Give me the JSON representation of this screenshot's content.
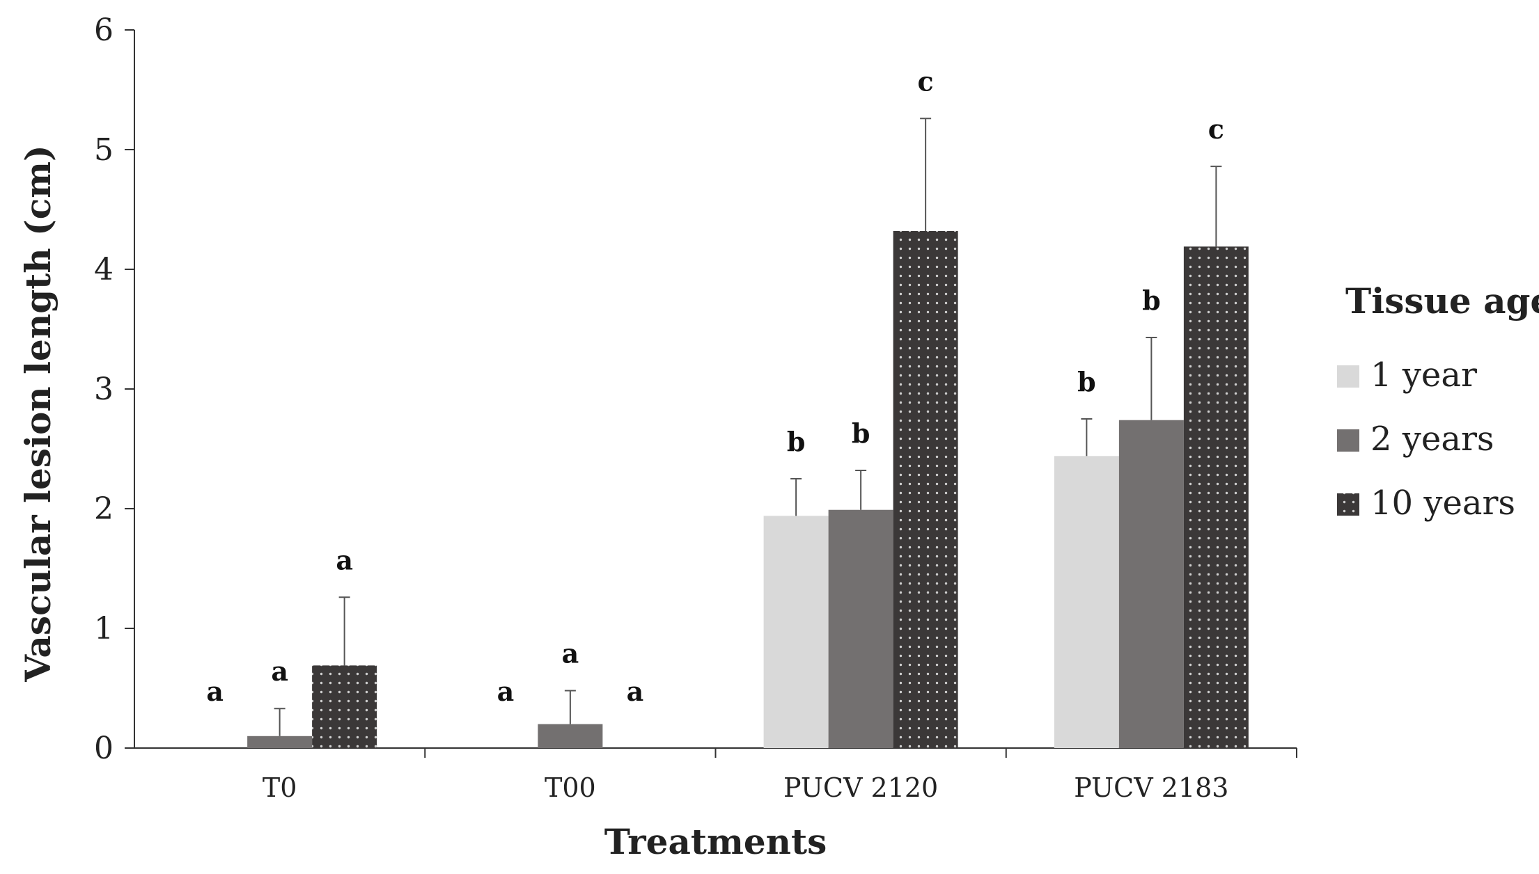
{
  "chart_data": {
    "type": "bar",
    "title": "",
    "xlabel": "Treatments",
    "ylabel": "Vascular lesion length (cm)",
    "ylim": [
      0,
      6
    ],
    "yticks": [
      "0",
      "1",
      "2",
      "3",
      "4",
      "5",
      "6"
    ],
    "categories": [
      "T0",
      "T00",
      "PUCV 2120",
      "PUCV 2183"
    ],
    "legend_title": "Tissue age",
    "legend_position": "right",
    "grid": false,
    "series": [
      {
        "name": "1 year",
        "color": "#d9d9d9",
        "pattern": "solid",
        "values": [
          0,
          0,
          1.94,
          2.44
        ],
        "errors": [
          0,
          0,
          0.31,
          0.31
        ],
        "labels": [
          "a",
          "a",
          "b",
          "b"
        ]
      },
      {
        "name": "2 years",
        "color": "#737070",
        "pattern": "solid",
        "values": [
          0.1,
          0.2,
          1.99,
          2.74
        ],
        "errors": [
          0.23,
          0.28,
          0.33,
          0.69
        ],
        "labels": [
          "a",
          "a",
          "b",
          "b"
        ]
      },
      {
        "name": "10 years",
        "color": "#3b3838",
        "pattern": "dotted",
        "values": [
          0.69,
          0,
          4.32,
          4.19
        ],
        "errors": [
          0.57,
          0,
          0.94,
          0.67
        ],
        "labels": [
          "a",
          "a",
          "c",
          "c"
        ]
      }
    ]
  }
}
